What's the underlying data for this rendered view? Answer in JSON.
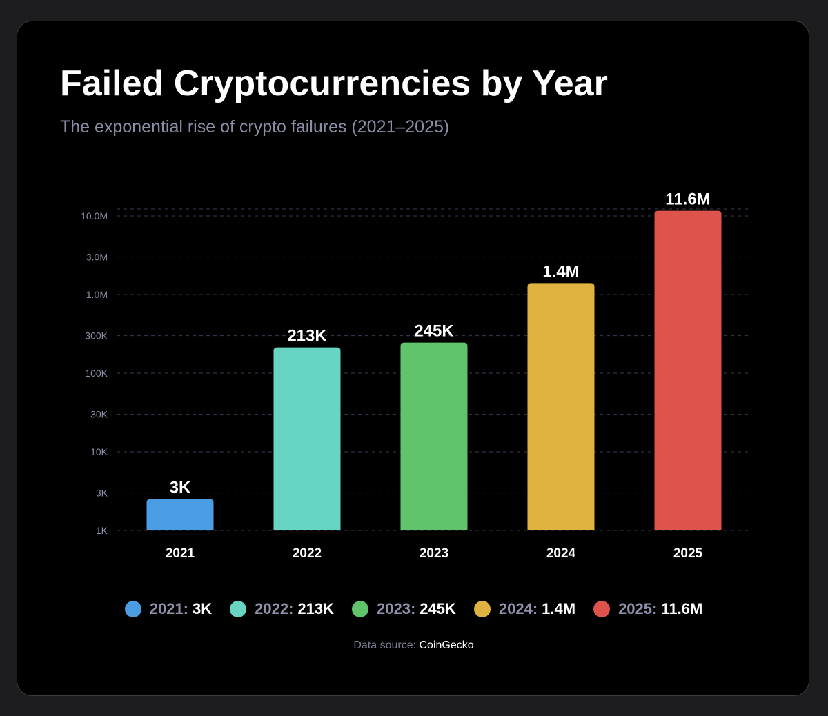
{
  "chart_data": {
    "type": "bar",
    "title": "Failed Cryptocurrencies by Year",
    "subtitle": "The exponential rise of crypto failures (2021–2025)",
    "yscale": "log",
    "ylim": [
      1000,
      12000000
    ],
    "grid": true,
    "legend_position": "bottom",
    "y_ticks": [
      {
        "value": 1000,
        "label": "1K"
      },
      {
        "value": 3000,
        "label": "3K"
      },
      {
        "value": 10000,
        "label": "10K"
      },
      {
        "value": 30000,
        "label": "30K"
      },
      {
        "value": 100000,
        "label": "100K"
      },
      {
        "value": 300000,
        "label": "300K"
      },
      {
        "value": 1000000,
        "label": "1.0M"
      },
      {
        "value": 3000000,
        "label": "3.0M"
      },
      {
        "value": 10000000,
        "label": "10.0M"
      }
    ],
    "categories": [
      "2021",
      "2022",
      "2023",
      "2024",
      "2025"
    ],
    "values": [
      2500,
      213000,
      245000,
      1400000,
      11600000
    ],
    "value_labels": [
      "3K",
      "213K",
      "245K",
      "1.4M",
      "11.6M"
    ],
    "colors": [
      "#4a9de3",
      "#67d5c2",
      "#5fc46b",
      "#e0b340",
      "#df534d"
    ]
  },
  "legend": [
    {
      "year": "2021",
      "value": "3K",
      "color": "#4a9de3"
    },
    {
      "year": "2022",
      "value": "213K",
      "color": "#67d5c2"
    },
    {
      "year": "2023",
      "value": "245K",
      "color": "#5fc46b"
    },
    {
      "year": "2024",
      "value": "1.4M",
      "color": "#e0b340"
    },
    {
      "year": "2025",
      "value": "11.6M",
      "color": "#df534d"
    }
  ],
  "source": {
    "prefix": "Data source:",
    "name": "CoinGecko"
  }
}
